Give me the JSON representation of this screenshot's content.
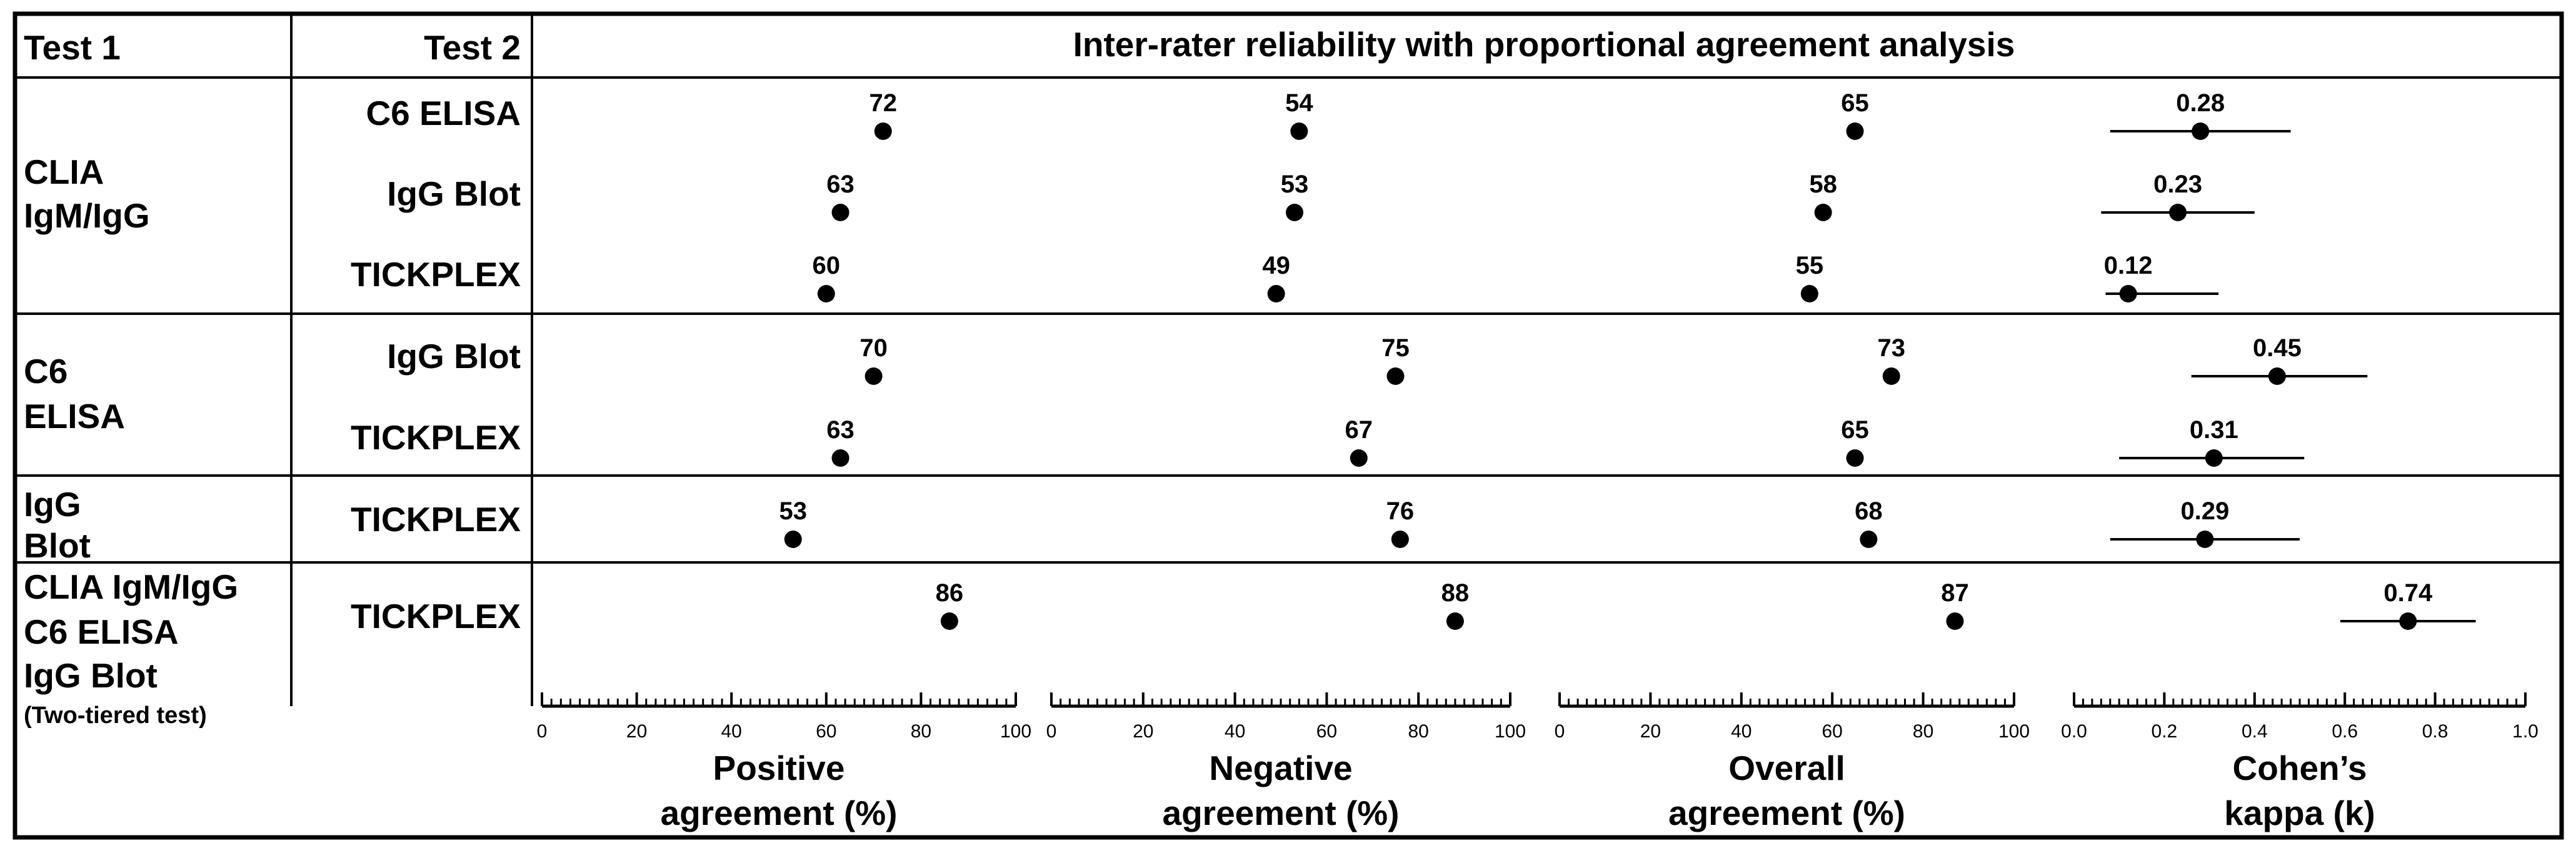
{
  "headers": {
    "test1": "Test 1",
    "test2": "Test 2",
    "title": "Inter-rater reliability with proportional agreement analysis"
  },
  "groups": [
    {
      "lines": [
        "CLIA",
        "IgM/IgG"
      ]
    },
    {
      "lines": [
        "C6",
        "ELISA"
      ]
    },
    {
      "lines": [
        "IgG",
        "Blot"
      ]
    },
    {
      "lines": [
        "CLIA IgM/IgG",
        "C6 ELISA",
        "IgG Blot"
      ],
      "note": "(Two-tiered test)"
    }
  ],
  "chart_data": {
    "type": "scatter",
    "title": "Inter-rater reliability with proportional agreement analysis",
    "rows": [
      {
        "test1": "CLIA IgM/IgG",
        "test2": "C6 ELISA"
      },
      {
        "test1": "CLIA IgM/IgG",
        "test2": "IgG Blot"
      },
      {
        "test1": "CLIA IgM/IgG",
        "test2": "TICKPLEX"
      },
      {
        "test1": "C6 ELISA",
        "test2": "IgG Blot"
      },
      {
        "test1": "C6 ELISA",
        "test2": "TICKPLEX"
      },
      {
        "test1": "IgG Blot",
        "test2": "TICKPLEX"
      },
      {
        "test1": "CLIA IgM/IgG C6 ELISA IgG Blot (Two-tiered test)",
        "test2": "TICKPLEX"
      }
    ],
    "panels": [
      {
        "name": "Positive agreement (%)",
        "xlabel_lines": [
          "Positive",
          "agreement (%)"
        ],
        "xlim": [
          0,
          100
        ],
        "ticks": [
          "0",
          "20",
          "40",
          "60",
          "80",
          "100"
        ],
        "values": [
          72,
          63,
          60,
          70,
          63,
          53,
          86
        ],
        "labels": [
          "72",
          "63",
          "60",
          "70",
          "63",
          "53",
          "86"
        ]
      },
      {
        "name": "Negative agreement (%)",
        "xlabel_lines": [
          "Negative",
          "agreement (%)"
        ],
        "xlim": [
          0,
          100
        ],
        "ticks": [
          "0",
          "20",
          "40",
          "60",
          "80",
          "100"
        ],
        "values": [
          54,
          53,
          49,
          75,
          67,
          76,
          88
        ],
        "labels": [
          "54",
          "53",
          "49",
          "75",
          "67",
          "76",
          "88"
        ]
      },
      {
        "name": "Overall agreement (%)",
        "xlabel_lines": [
          "Overall",
          "agreement (%)"
        ],
        "xlim": [
          0,
          100
        ],
        "ticks": [
          "0",
          "20",
          "40",
          "60",
          "80",
          "100"
        ],
        "values": [
          65,
          58,
          55,
          73,
          65,
          68,
          87
        ],
        "labels": [
          "65",
          "58",
          "55",
          "73",
          "65",
          "68",
          "87"
        ]
      },
      {
        "name": "Cohen's kappa (k)",
        "xlabel_lines": [
          "Cohen’s",
          "kappa (k)"
        ],
        "xlim": [
          0,
          1
        ],
        "ticks": [
          "0.0",
          "0.2",
          "0.4",
          "0.6",
          "0.8",
          "1.0"
        ],
        "values": [
          0.28,
          0.23,
          0.12,
          0.45,
          0.31,
          0.29,
          0.74
        ],
        "labels": [
          "0.28",
          "0.23",
          "0.12",
          "0.45",
          "0.31",
          "0.29",
          "0.74"
        ],
        "ci_low": [
          0.08,
          0.06,
          0.07,
          0.26,
          0.1,
          0.08,
          0.59
        ],
        "ci_high": [
          0.48,
          0.4,
          0.32,
          0.65,
          0.51,
          0.5,
          0.89
        ]
      }
    ]
  }
}
